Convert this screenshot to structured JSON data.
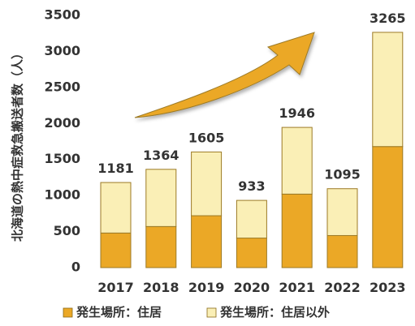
{
  "chart_data": {
    "type": "bar",
    "stacked": true,
    "ylabel": "北海道の熱中症救急搬送者数（人）",
    "ylim": [
      0,
      3500
    ],
    "yticks": [
      0,
      500,
      1000,
      1500,
      2000,
      2500,
      3000,
      3500
    ],
    "grid": false,
    "legend_position": "bottom",
    "categories": [
      "2017",
      "2018",
      "2019",
      "2020",
      "2021",
      "2022",
      "2023"
    ],
    "totals": [
      1181,
      1364,
      1605,
      933,
      1946,
      1095,
      3265
    ],
    "series": [
      {
        "name": "発生場所：住居",
        "color": "#eba826",
        "values": [
          480,
          570,
          720,
          410,
          1020,
          445,
          1680
        ]
      },
      {
        "name": "発生場所：住居以外",
        "color": "#faefb6",
        "values": [
          701,
          794,
          885,
          523,
          926,
          650,
          1585
        ]
      }
    ],
    "annotations": [
      {
        "type": "trend-arrow",
        "color": "#eba826",
        "from_category": "2017",
        "to_category": "2022"
      }
    ]
  }
}
